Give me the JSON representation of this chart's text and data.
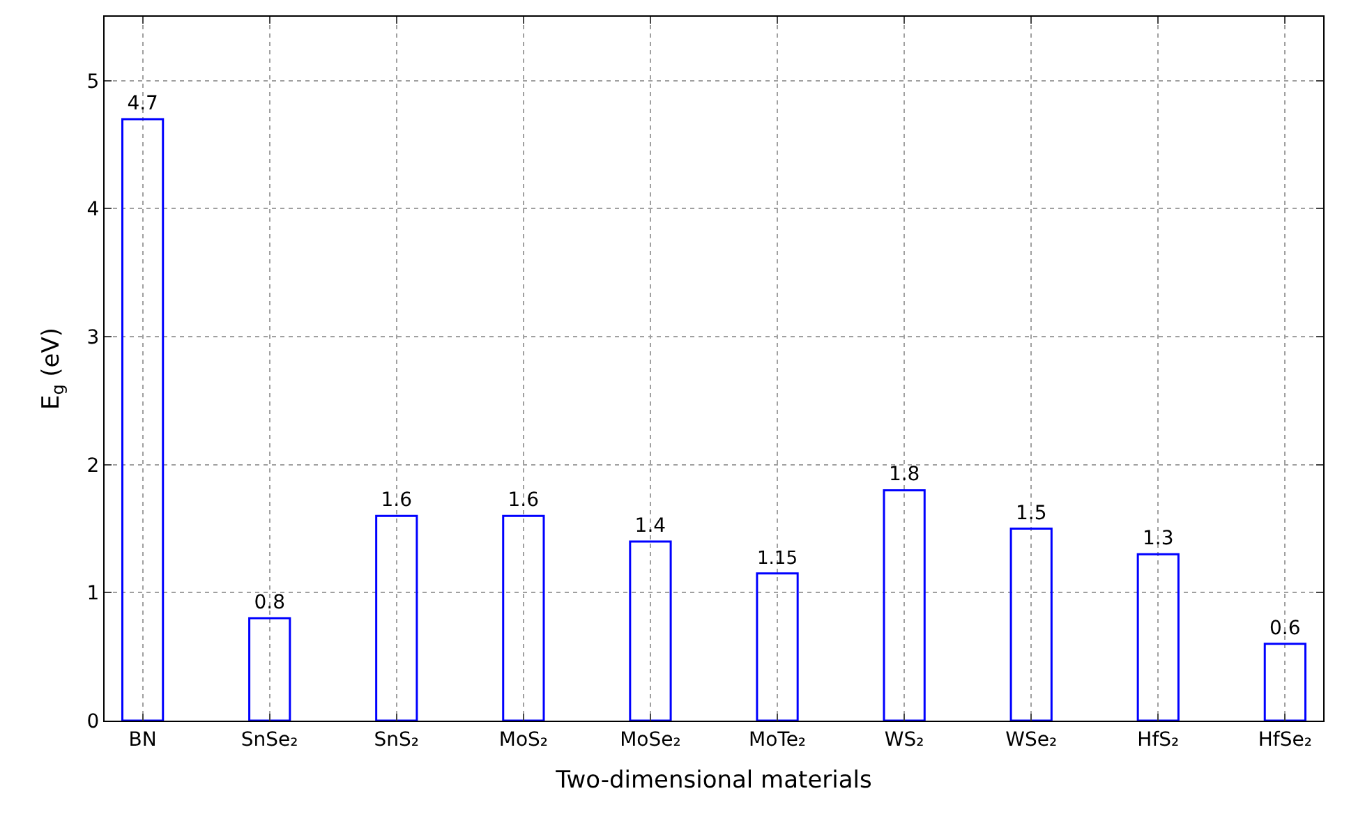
{
  "chart_data": {
    "type": "bar",
    "xlabel": "Two-dimensional materials",
    "ylabel": "E$_{g}$ (eV)",
    "categories": [
      "BN",
      "SnSe₂",
      "SnS₂",
      "MoS₂",
      "MoSe₂",
      "MoTe₂",
      "WS₂",
      "WSe₂",
      "HfS₂",
      "HfSe₂"
    ],
    "values": [
      4.7,
      0.8,
      1.6,
      1.6,
      1.4,
      1.15,
      1.8,
      1.5,
      1.3,
      0.6
    ],
    "color": "#0000ff",
    "ylim": [
      0,
      5.5
    ],
    "yticks": [
      0,
      1,
      2,
      3,
      4,
      5
    ],
    "grid": true,
    "data_labels": true
  }
}
